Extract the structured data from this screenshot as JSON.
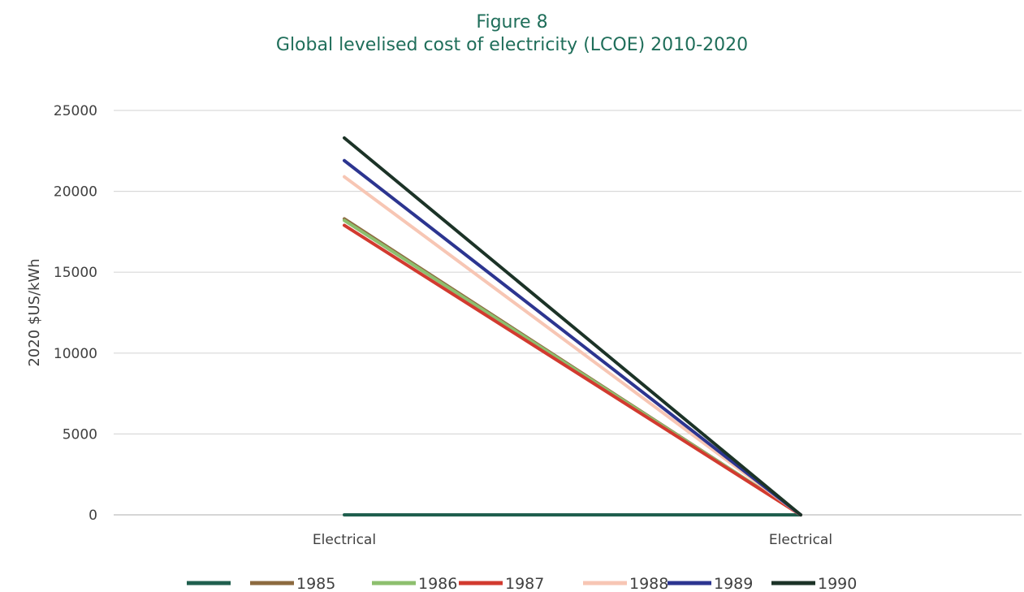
{
  "header": {
    "figure_label": "Figure 8",
    "title": "Global levelised cost of electricity (LCOE) 2010-2020"
  },
  "chart_data": {
    "type": "line",
    "title": "Global levelised cost of electricity (LCOE) 2010-2020",
    "xlabel": "",
    "ylabel": "2020 $US/kWh",
    "categories": [
      "Electrical",
      "Electrical"
    ],
    "ylim": [
      0,
      25000
    ],
    "yticks": [
      0,
      5000,
      10000,
      15000,
      20000,
      25000
    ],
    "grid": true,
    "legend_position": "bottom",
    "series": [
      {
        "name": "",
        "color": "#1f5f4e",
        "values": [
          0,
          0
        ]
      },
      {
        "name": "1985",
        "color": "#8c6a3f",
        "values": [
          18300,
          0
        ]
      },
      {
        "name": "1986",
        "color": "#8dbf6e",
        "values": [
          18200,
          0
        ]
      },
      {
        "name": "1987",
        "color": "#d23a2f",
        "values": [
          17900,
          0
        ]
      },
      {
        "name": "1988",
        "color": "#f7c6b4",
        "values": [
          20900,
          0
        ]
      },
      {
        "name": "1989",
        "color": "#2c3590",
        "values": [
          21900,
          0
        ]
      },
      {
        "name": "1990",
        "color": "#1c3327",
        "values": [
          23300,
          0
        ]
      }
    ]
  }
}
